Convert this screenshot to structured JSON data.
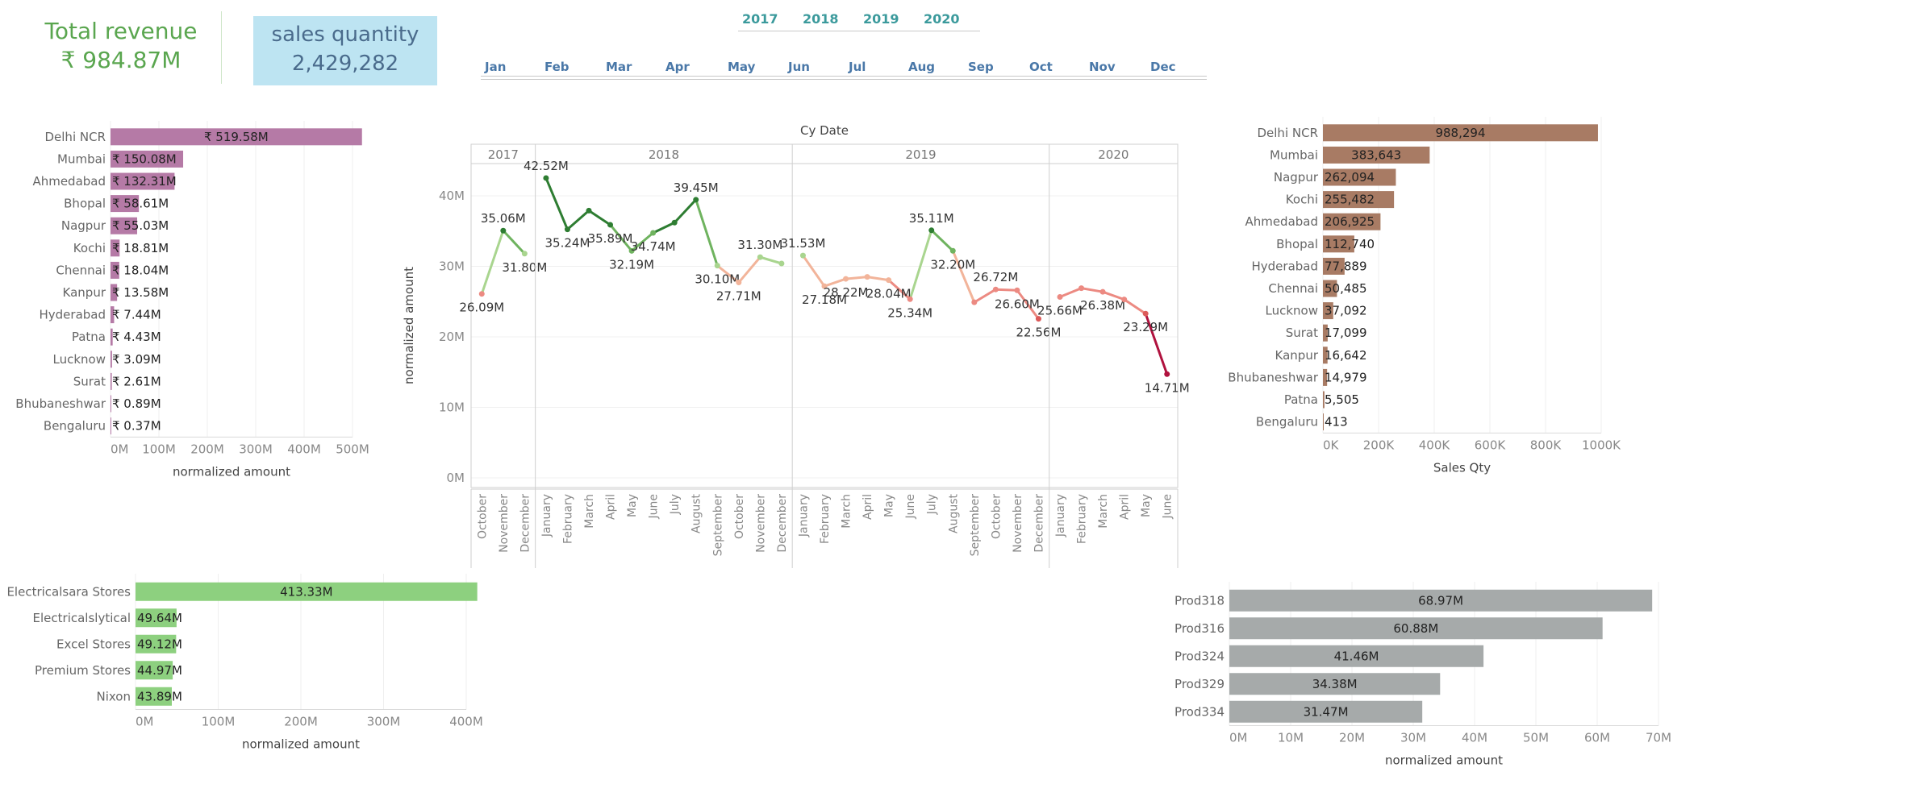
{
  "kpis": {
    "revenue_title": "Total revenue",
    "revenue_value": "₹ 984.87M",
    "quantity_title": "sales quantity",
    "quantity_value": "2,429,282"
  },
  "filters": {
    "years": [
      "2017",
      "2018",
      "2019",
      "2020"
    ],
    "months": [
      "Jan",
      "Feb",
      "Mar",
      "Apr",
      "May",
      "Jun",
      "Jul",
      "Aug",
      "Sep",
      "Oct",
      "Nov",
      "Dec"
    ]
  },
  "colors": {
    "revenue_bar": "#b57aa6",
    "qty_bar": "#a87b64",
    "customer_bar": "#8dd07f",
    "product_bar": "#a6aaaa"
  },
  "chart_data": [
    {
      "id": "revenue_by_market",
      "type": "bar",
      "orientation": "horizontal",
      "categories": [
        "Delhi NCR",
        "Mumbai",
        "Ahmedabad",
        "Bhopal",
        "Nagpur",
        "Kochi",
        "Chennai",
        "Kanpur",
        "Hyderabad",
        "Patna",
        "Lucknow",
        "Surat",
        "Bhubaneshwar",
        "Bengaluru"
      ],
      "values": [
        519.58,
        150.08,
        132.31,
        58.61,
        55.03,
        18.81,
        18.04,
        13.58,
        7.44,
        4.43,
        3.09,
        2.61,
        0.89,
        0.37
      ],
      "labels": [
        "₹ 519.58M",
        "₹ 150.08M",
        "₹ 132.31M",
        "₹ 58.61M",
        "₹ 55.03M",
        "₹ 18.81M",
        "₹ 18.04M",
        "₹ 13.58M",
        "₹ 7.44M",
        "₹ 4.43M",
        "₹ 3.09M",
        "₹ 2.61M",
        "₹ 0.89M",
        "₹ 0.37M"
      ],
      "xticks": [
        "0M",
        "100M",
        "200M",
        "300M",
        "400M",
        "500M"
      ],
      "xlim": [
        0,
        500
      ],
      "xlabel": "normalized amount"
    },
    {
      "id": "revenue_trend",
      "type": "line",
      "title": "Cy Date",
      "ylabel": "normalized amount",
      "yticks": [
        "0M",
        "10M",
        "20M",
        "30M",
        "40M"
      ],
      "ylim": [
        0,
        40
      ],
      "years": [
        {
          "year": "2017",
          "months": [
            "October",
            "November",
            "December"
          ],
          "values": [
            26.09,
            35.06,
            31.8
          ],
          "labels": [
            "26.09M",
            "35.06M",
            "31.80M"
          ]
        },
        {
          "year": "2018",
          "months": [
            "January",
            "February",
            "March",
            "April",
            "May",
            "June",
            "July",
            "August",
            "September",
            "October",
            "November",
            "December"
          ],
          "values": [
            42.52,
            35.24,
            37.9,
            35.89,
            32.19,
            34.74,
            36.2,
            39.45,
            30.1,
            27.71,
            31.3,
            30.4
          ],
          "labels": [
            "42.52M",
            "35.24M",
            "",
            "35.89M",
            "32.19M",
            "34.74M",
            "",
            "39.45M",
            "30.10M",
            "27.71M",
            "31.30M",
            ""
          ]
        },
        {
          "year": "2019",
          "months": [
            "January",
            "February",
            "March",
            "April",
            "May",
            "June",
            "July",
            "August",
            "September",
            "October",
            "November",
            "December"
          ],
          "values": [
            31.53,
            27.18,
            28.22,
            28.5,
            28.04,
            25.34,
            35.11,
            32.2,
            24.9,
            26.72,
            26.6,
            22.56
          ],
          "labels": [
            "31.53M",
            "27.18M",
            "28.22M",
            "",
            "28.04M",
            "25.34M",
            "35.11M",
            "32.20M",
            "",
            "26.72M",
            "26.60M",
            "22.56M"
          ]
        },
        {
          "year": "2020",
          "months": [
            "January",
            "February",
            "March",
            "April",
            "May",
            "June"
          ],
          "values": [
            25.66,
            26.9,
            26.38,
            25.3,
            23.29,
            14.71
          ],
          "labels": [
            "25.66M",
            "",
            "26.38M",
            "",
            "23.29M",
            "14.71M"
          ]
        }
      ]
    },
    {
      "id": "qty_by_market",
      "type": "bar",
      "orientation": "horizontal",
      "categories": [
        "Delhi NCR",
        "Mumbai",
        "Nagpur",
        "Kochi",
        "Ahmedabad",
        "Bhopal",
        "Hyderabad",
        "Chennai",
        "Lucknow",
        "Surat",
        "Kanpur",
        "Bhubaneshwar",
        "Patna",
        "Bengaluru"
      ],
      "values": [
        988294,
        383643,
        262094,
        255482,
        206925,
        112740,
        77889,
        50485,
        37092,
        17099,
        16642,
        14979,
        5505,
        413
      ],
      "labels": [
        "988,294",
        "383,643",
        "262,094",
        "255,482",
        "206,925",
        "112,740",
        "77,889",
        "50,485",
        "37,092",
        "17,099",
        "16,642",
        "14,979",
        "5,505",
        "413"
      ],
      "xticks": [
        "0K",
        "200K",
        "400K",
        "600K",
        "800K",
        "1000K"
      ],
      "xlim": [
        0,
        1000000
      ],
      "xlabel": "Sales Qty"
    },
    {
      "id": "top_customers",
      "type": "bar",
      "orientation": "horizontal",
      "categories": [
        "Electricalsara Stores",
        "Electricalslytical",
        "Excel Stores",
        "Premium Stores",
        "Nixon"
      ],
      "values": [
        413.33,
        49.64,
        49.12,
        44.97,
        43.89
      ],
      "labels": [
        "413.33M",
        "49.64M",
        "49.12M",
        "44.97M",
        "43.89M"
      ],
      "xticks": [
        "0M",
        "100M",
        "200M",
        "300M",
        "400M"
      ],
      "xlim": [
        0,
        400
      ],
      "xlabel": "normalized amount"
    },
    {
      "id": "top_products",
      "type": "bar",
      "orientation": "horizontal",
      "categories": [
        "Prod318",
        "Prod316",
        "Prod324",
        "Prod329",
        "Prod334"
      ],
      "values": [
        68.97,
        60.88,
        41.46,
        34.38,
        31.47
      ],
      "labels": [
        "68.97M",
        "60.88M",
        "41.46M",
        "34.38M",
        "31.47M"
      ],
      "xticks": [
        "0M",
        "10M",
        "20M",
        "30M",
        "40M",
        "50M",
        "60M",
        "70M"
      ],
      "xlim": [
        0,
        70
      ],
      "xlabel": "normalized amount"
    }
  ]
}
